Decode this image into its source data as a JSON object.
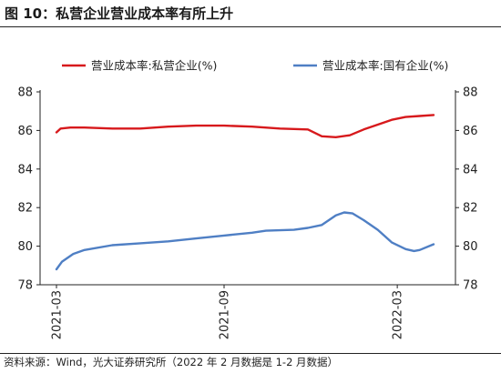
{
  "figure_title": "图 10：私营企业营业成本率有所上升",
  "source_note": "资料来源：Wind，光大证券研究所（2022 年 2 月数据是 1-2 月数据）",
  "colors": {
    "private": "#d7191c",
    "state": "#4f7fc4"
  },
  "chart_data": {
    "type": "line",
    "title": "",
    "xlabel": "",
    "ylabel": "",
    "ylim": [
      78,
      88
    ],
    "yticks": [
      "78",
      "80",
      "82",
      "84",
      "86",
      "88"
    ],
    "y2lim": [
      78,
      88
    ],
    "y2ticks": [
      "78",
      "80",
      "82",
      "84",
      "86",
      "88"
    ],
    "xticks": [
      "2021-03",
      "2021-09",
      "2022-03"
    ],
    "grid": false,
    "legend_position": "top",
    "series": [
      {
        "name": "营业成本率:私营企业(%)",
        "color": "#d7191c",
        "points": [
          [
            0,
            85.9
          ],
          [
            0.15,
            86.1
          ],
          [
            0.5,
            86.15
          ],
          [
            1,
            86.15
          ],
          [
            2,
            86.1
          ],
          [
            3,
            86.1
          ],
          [
            4,
            86.2
          ],
          [
            5,
            86.25
          ],
          [
            6,
            86.25
          ],
          [
            7,
            86.2
          ],
          [
            8,
            86.1
          ],
          [
            9,
            86.05
          ],
          [
            9.5,
            85.7
          ],
          [
            10,
            85.65
          ],
          [
            10.5,
            85.75
          ],
          [
            11,
            86.05
          ],
          [
            11.5,
            86.3
          ],
          [
            12,
            86.55
          ],
          [
            12.5,
            86.7
          ],
          [
            13,
            86.75
          ],
          [
            13.5,
            86.8
          ]
        ]
      },
      {
        "name": "营业成本率:国有企业(%)",
        "color": "#4f7fc4",
        "points": [
          [
            0,
            78.8
          ],
          [
            0.2,
            79.2
          ],
          [
            0.6,
            79.6
          ],
          [
            1,
            79.8
          ],
          [
            2,
            80.05
          ],
          [
            3,
            80.15
          ],
          [
            4,
            80.25
          ],
          [
            5,
            80.4
          ],
          [
            6,
            80.55
          ],
          [
            7,
            80.7
          ],
          [
            7.5,
            80.8
          ],
          [
            8.5,
            80.85
          ],
          [
            9,
            80.95
          ],
          [
            9.5,
            81.1
          ],
          [
            10,
            81.6
          ],
          [
            10.3,
            81.75
          ],
          [
            10.6,
            81.7
          ],
          [
            11,
            81.35
          ],
          [
            11.5,
            80.85
          ],
          [
            12,
            80.2
          ],
          [
            12.5,
            79.85
          ],
          [
            12.8,
            79.75
          ],
          [
            13,
            79.8
          ],
          [
            13.5,
            80.1
          ]
        ]
      }
    ]
  }
}
